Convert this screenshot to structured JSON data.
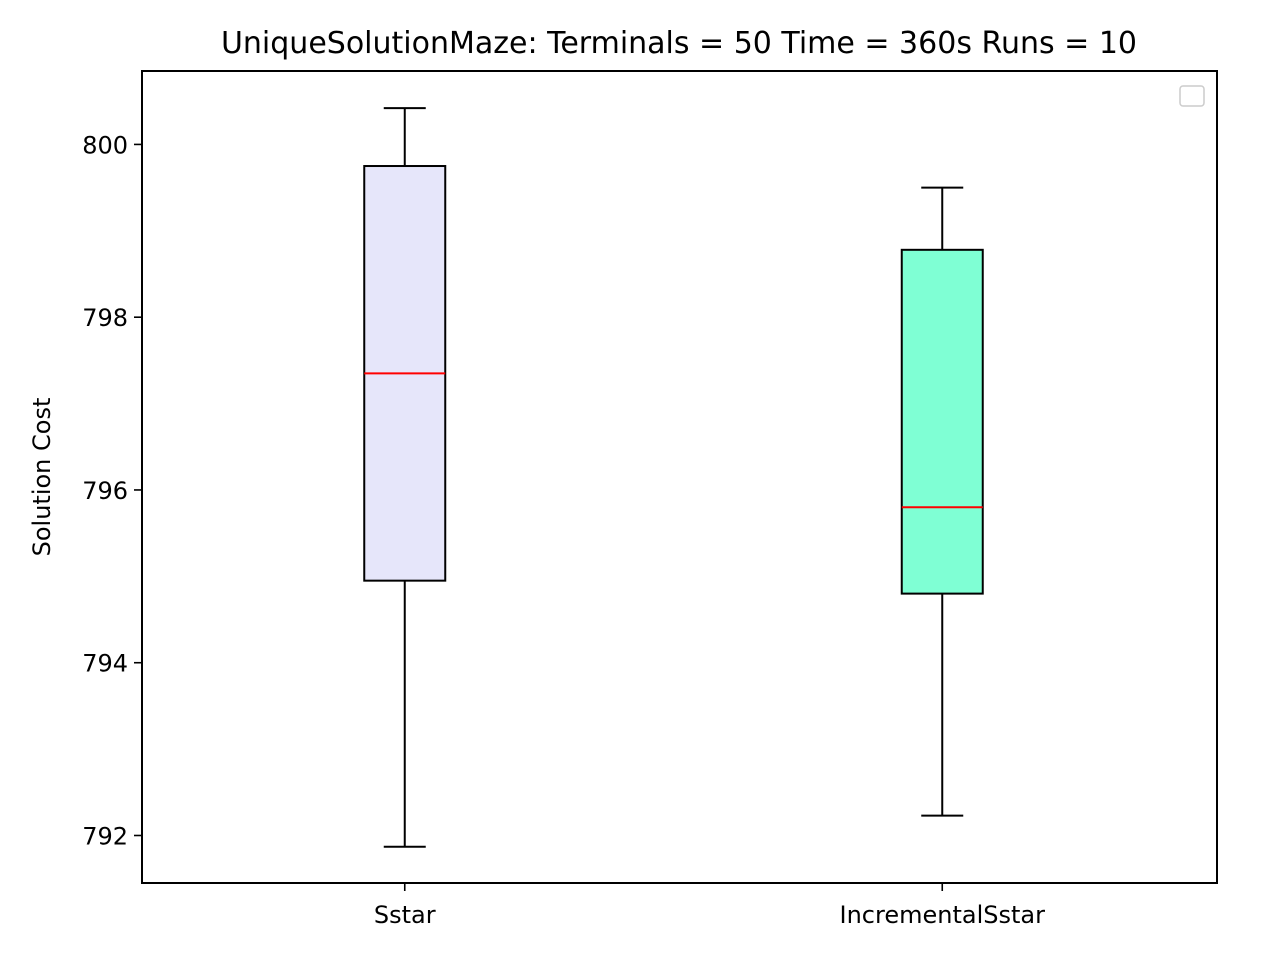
{
  "chart_data": {
    "type": "box",
    "title": "UniqueSolutionMaze:  Terminals = 50  Time = 360s  Runs = 10",
    "xlabel": "",
    "ylabel": "Solution Cost",
    "ylim": [
      791.45,
      800.85
    ],
    "yticks": [
      792,
      794,
      796,
      798,
      800
    ],
    "categories": [
      "Sstar",
      "IncrementalSstar"
    ],
    "boxes": [
      {
        "name": "Sstar",
        "whisker_low": 791.87,
        "q1": 794.95,
        "median": 797.35,
        "q3": 799.75,
        "whisker_high": 800.42,
        "fill": "#e6e6fa"
      },
      {
        "name": "IncrementalSstar",
        "whisker_low": 792.23,
        "q1": 794.8,
        "median": 795.8,
        "q3": 798.78,
        "whisker_high": 799.5,
        "fill": "#7fffd4"
      }
    ],
    "median_color": "#ff0000",
    "grid": false,
    "legend": {
      "position": "upper-right",
      "entries": []
    }
  }
}
